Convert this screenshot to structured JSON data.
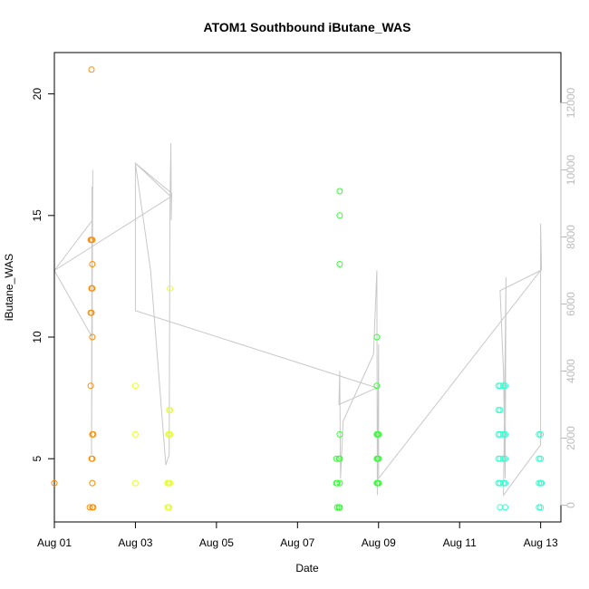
{
  "chart_data": {
    "type": "scatter",
    "title": "ATOM1 Southbound iButane_WAS",
    "xlabel": "Date",
    "ylabel": "iButane_WAS",
    "xlim": [
      "2016-08-01 00:00",
      "2016-08-13 12:00"
    ],
    "ylim": [
      2.4,
      21.7
    ],
    "x_ticks": [
      "2016-08-01",
      "2016-08-03",
      "2016-08-05",
      "2016-08-07",
      "2016-08-09",
      "2016-08-11",
      "2016-08-13"
    ],
    "x_tick_labels": [
      "Aug 01",
      "Aug 03",
      "Aug 05",
      "Aug 07",
      "Aug 09",
      "Aug 11",
      "Aug 13"
    ],
    "y_ticks": [
      5,
      10,
      15,
      20
    ],
    "y_tick_labels": [
      "5",
      "10",
      "15",
      "20"
    ],
    "y2_ticks": [
      0,
      2000,
      4000,
      6000,
      8000,
      10000,
      12000
    ],
    "y2_tick_labels": [
      "0",
      "2000",
      "4000",
      "6000",
      "8000",
      "10000",
      "12000"
    ],
    "y2lim": [
      -500,
      13500
    ],
    "grid": false,
    "legend": "none",
    "colors": {
      "orange": "#FF8C00",
      "yellow": "#E6FF33",
      "green": "#33FF33",
      "cyan": "#33FFCC",
      "altitude": "#c8c8c8"
    },
    "series": [
      {
        "color": "orange",
        "points": [
          [
            "2016-08-01 00:00",
            4
          ],
          [
            "2016-08-01 21:00",
            3
          ],
          [
            "2016-08-01 21:30",
            14
          ],
          [
            "2016-08-01 21:30",
            11
          ],
          [
            "2016-08-01 21:30",
            8
          ],
          [
            "2016-08-01 22:00",
            21
          ],
          [
            "2016-08-01 22:00",
            14
          ],
          [
            "2016-08-01 22:00",
            12
          ],
          [
            "2016-08-01 22:00",
            12
          ],
          [
            "2016-08-01 22:00",
            11
          ],
          [
            "2016-08-01 22:00",
            5
          ],
          [
            "2016-08-01 22:30",
            14
          ],
          [
            "2016-08-01 22:30",
            13
          ],
          [
            "2016-08-01 22:30",
            12
          ],
          [
            "2016-08-01 22:30",
            10
          ],
          [
            "2016-08-01 22:30",
            6
          ],
          [
            "2016-08-01 22:30",
            5
          ],
          [
            "2016-08-01 22:30",
            4
          ],
          [
            "2016-08-01 22:30",
            3
          ],
          [
            "2016-08-01 23:00",
            6
          ],
          [
            "2016-08-01 23:00",
            3
          ]
        ]
      },
      {
        "color": "yellow",
        "points": [
          [
            "2016-08-03 00:00",
            8
          ],
          [
            "2016-08-03 00:00",
            6
          ],
          [
            "2016-08-03 00:00",
            4
          ],
          [
            "2016-08-03 19:00",
            4
          ],
          [
            "2016-08-03 19:00",
            3
          ],
          [
            "2016-08-03 19:30",
            6
          ],
          [
            "2016-08-03 19:30",
            4
          ],
          [
            "2016-08-03 19:30",
            3
          ],
          [
            "2016-08-03 20:00",
            7
          ],
          [
            "2016-08-03 20:00",
            6
          ],
          [
            "2016-08-03 20:00",
            4
          ],
          [
            "2016-08-03 20:00",
            3
          ],
          [
            "2016-08-03 20:30",
            12
          ],
          [
            "2016-08-03 20:30",
            7
          ],
          [
            "2016-08-03 20:30",
            6
          ],
          [
            "2016-08-03 20:30",
            4
          ]
        ]
      },
      {
        "color": "green",
        "points": [
          [
            "2016-08-07 23:00",
            5
          ],
          [
            "2016-08-07 23:00",
            4
          ],
          [
            "2016-08-07 23:30",
            4
          ],
          [
            "2016-08-07 23:30",
            3
          ],
          [
            "2016-08-08 00:30",
            5
          ],
          [
            "2016-08-08 00:30",
            3
          ],
          [
            "2016-08-08 01:00",
            16
          ],
          [
            "2016-08-08 01:00",
            15
          ],
          [
            "2016-08-08 01:00",
            13
          ],
          [
            "2016-08-08 01:00",
            6
          ],
          [
            "2016-08-08 01:00",
            5
          ],
          [
            "2016-08-08 01:00",
            4
          ],
          [
            "2016-08-08 01:00",
            3
          ],
          [
            "2016-08-08 23:00",
            10
          ],
          [
            "2016-08-08 23:00",
            8
          ],
          [
            "2016-08-08 23:00",
            6
          ],
          [
            "2016-08-08 23:00",
            5
          ],
          [
            "2016-08-08 23:00",
            4
          ],
          [
            "2016-08-08 23:30",
            6
          ],
          [
            "2016-08-08 23:30",
            5
          ],
          [
            "2016-08-08 23:30",
            4
          ],
          [
            "2016-08-09 00:00",
            6
          ],
          [
            "2016-08-09 00:00",
            5
          ],
          [
            "2016-08-09 00:00",
            4
          ]
        ]
      },
      {
        "color": "cyan",
        "points": [
          [
            "2016-08-11 23:00",
            8
          ],
          [
            "2016-08-11 23:00",
            7
          ],
          [
            "2016-08-11 23:00",
            6
          ],
          [
            "2016-08-11 23:00",
            5
          ],
          [
            "2016-08-11 23:00",
            4
          ],
          [
            "2016-08-12 00:00",
            8
          ],
          [
            "2016-08-12 00:00",
            7
          ],
          [
            "2016-08-12 00:00",
            6
          ],
          [
            "2016-08-12 00:00",
            5
          ],
          [
            "2016-08-12 00:00",
            4
          ],
          [
            "2016-08-12 00:00",
            3
          ],
          [
            "2016-08-12 02:00",
            8
          ],
          [
            "2016-08-12 02:00",
            6
          ],
          [
            "2016-08-12 02:00",
            5
          ],
          [
            "2016-08-12 02:00",
            4
          ],
          [
            "2016-08-12 03:00",
            8
          ],
          [
            "2016-08-12 03:00",
            6
          ],
          [
            "2016-08-12 03:00",
            5
          ],
          [
            "2016-08-12 03:00",
            4
          ],
          [
            "2016-08-12 03:00",
            3
          ],
          [
            "2016-08-12 23:00",
            6
          ],
          [
            "2016-08-12 23:00",
            5
          ],
          [
            "2016-08-12 23:00",
            4
          ],
          [
            "2016-08-12 23:00",
            3
          ],
          [
            "2016-08-13 00:00",
            6
          ],
          [
            "2016-08-13 00:00",
            5
          ],
          [
            "2016-08-13 00:00",
            4
          ],
          [
            "2016-08-13 00:00",
            3
          ],
          [
            "2016-08-13 00:30",
            4
          ]
        ]
      }
    ],
    "altitude_trace": [
      [
        "2016-08-01 00:00",
        7000
      ],
      [
        "2016-08-01 22:30",
        8500
      ],
      [
        "2016-08-01 22:45",
        10000
      ],
      [
        "2016-08-01 22:00",
        1500
      ],
      [
        "2016-08-01 22:15",
        9500
      ],
      [
        "2016-08-01 22:30",
        5000
      ],
      [
        "2016-08-01 00:00",
        7000
      ],
      [
        "2016-08-03 21:00",
        9200
      ],
      [
        "2016-08-03 00:00",
        10200
      ],
      [
        "2016-08-03 09:00",
        7000
      ],
      [
        "2016-08-03 18:00",
        1200
      ],
      [
        "2016-08-03 20:00",
        1500
      ],
      [
        "2016-08-03 20:30",
        9000
      ],
      [
        "2016-08-03 21:00",
        10800
      ],
      [
        "2016-08-03 21:15",
        8500
      ],
      [
        "2016-08-03 21:30",
        9300
      ],
      [
        "2016-08-03 00:00",
        10200
      ],
      [
        "2016-08-03 00:00",
        5800
      ],
      [
        "2016-08-08 23:00",
        3500
      ],
      [
        "2016-08-08 00:30",
        3000
      ],
      [
        "2016-08-08 01:00",
        4000
      ],
      [
        "2016-08-08 01:30",
        800
      ],
      [
        "2016-08-08 03:00",
        2500
      ],
      [
        "2016-08-08 21:00",
        4500
      ],
      [
        "2016-08-08 23:00",
        7000
      ],
      [
        "2016-08-08 23:15",
        300
      ],
      [
        "2016-08-08 23:45",
        3000
      ],
      [
        "2016-08-09 00:00",
        4800
      ],
      [
        "2016-08-09 00:00",
        800
      ],
      [
        "2016-08-13 00:00",
        7000
      ],
      [
        "2016-08-12 00:00",
        6400
      ],
      [
        "2016-08-12 02:00",
        4000
      ],
      [
        "2016-08-12 03:00",
        800
      ],
      [
        "2016-08-12 03:30",
        6800
      ],
      [
        "2016-08-12 02:00",
        300
      ],
      [
        "2016-08-13 00:00",
        1800
      ],
      [
        "2016-08-13 00:00",
        8400
      ],
      [
        "2016-08-13 00:30",
        7000
      ]
    ]
  }
}
